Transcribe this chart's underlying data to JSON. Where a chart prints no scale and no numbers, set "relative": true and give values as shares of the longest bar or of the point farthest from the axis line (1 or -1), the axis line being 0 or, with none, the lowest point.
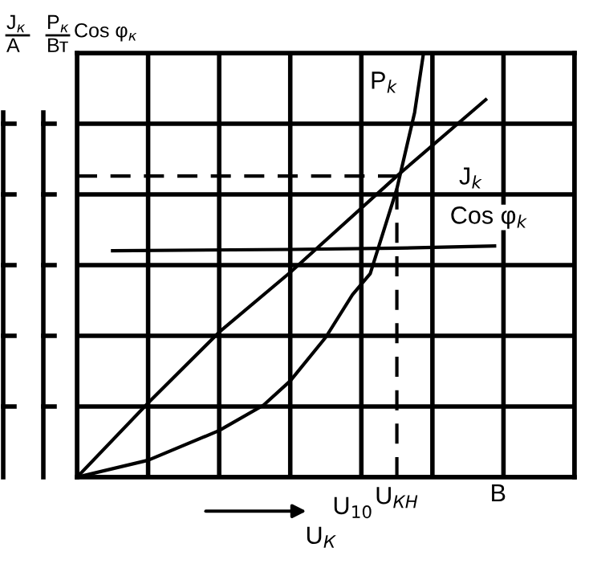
{
  "chart_data": {
    "type": "line",
    "relative": true,
    "ylabel": "J$_{к}$\nA",
    "y2label": "P$_{к}$\nВт",
    "xlabel": "U$_{К}$",
    "categories": [
      null,
      null,
      null,
      null,
      null,
      null,
      null,
      null,
      null,
      null,
      null,
      null,
      null,
      null,
      null,
      null,
      null,
      null,
      null,
      null,
      null,
      null,
      null,
      null,
      null,
      null,
      null,
      null,
      null,
      null,
      null,
      null,
      null,
      null,
      null,
      null,
      null,
      null,
      null,
      null,
      null,
      null,
      null,
      null,
      null,
      null,
      null,
      null,
      null,
      null,
      null,
      null,
      null,
      null,
      null,
      null,
      null
    ],
    "series": [
      {
        "name": "P$_{k}$",
        "color": "#000000",
        "values": [
          0,
          null,
          null,
          null,
          null,
          null,
          null,
          null,
          0.04,
          null,
          null,
          null,
          null,
          null,
          null,
          null,
          0.11,
          null,
          null,
          null,
          null,
          0.17,
          null,
          null,
          0.227,
          null,
          null,
          null,
          0.33,
          null,
          null,
          0.43,
          null,
          0.48,
          null,
          null,
          0.68,
          null,
          0.86,
          1.0,
          null,
          null,
          null,
          null,
          null,
          null,
          null,
          null,
          null,
          null,
          null,
          null,
          null,
          null,
          null,
          null,
          null
        ]
      },
      {
        "name": "J$_{k}$",
        "color": "#000000",
        "values": [
          0,
          null,
          null,
          null,
          null,
          null,
          null,
          null,
          0.175,
          null,
          null,
          null,
          null,
          null,
          null,
          null,
          0.342,
          null,
          null,
          null,
          null,
          null,
          null,
          null,
          0.483,
          null,
          null,
          null,
          null,
          null,
          null,
          null,
          null,
          null,
          null,
          null,
          0.71,
          null,
          null,
          null,
          null,
          null,
          null,
          null,
          null,
          null,
          0.89,
          null,
          null,
          null,
          null,
          null,
          null,
          null,
          null,
          null,
          null
        ]
      },
      {
        "name": "Cos φ$_{k}$",
        "color": "#000000",
        "values": [
          null,
          null,
          null,
          null,
          0.534,
          null,
          null,
          null,
          null,
          null,
          null,
          null,
          null,
          null,
          null,
          null,
          null,
          null,
          null,
          null,
          null,
          null,
          null,
          null,
          0.537,
          null,
          null,
          null,
          null,
          null,
          null,
          null,
          null,
          null,
          null,
          null,
          0.54,
          null,
          null,
          null,
          null,
          null,
          null,
          null,
          null,
          null,
          null,
          0.545,
          null,
          null,
          null,
          null,
          null,
          null,
          null,
          null,
          null
        ]
      },
      {
        "color": "#000000",
        "line_style": "dashed",
        "values": [
          0.71,
          null,
          null,
          null,
          null,
          null,
          null,
          null,
          null,
          null,
          null,
          null,
          null,
          null,
          null,
          null,
          null,
          null,
          null,
          null,
          null,
          null,
          null,
          null,
          null,
          null,
          null,
          null,
          null,
          null,
          null,
          null,
          null,
          null,
          null,
          null,
          0.71,
          null,
          null,
          null,
          null,
          null,
          null,
          null,
          null,
          null,
          null,
          null,
          null,
          null,
          null,
          null,
          null,
          null,
          null,
          null,
          null
        ]
      }
    ],
    "annotations": [
      "Cos φ$_{к}$",
      "U$_{10}$",
      "В",
      "U$_{КН}$"
    ],
    "grid": true,
    "marker": "none",
    "line_style": "solid"
  }
}
